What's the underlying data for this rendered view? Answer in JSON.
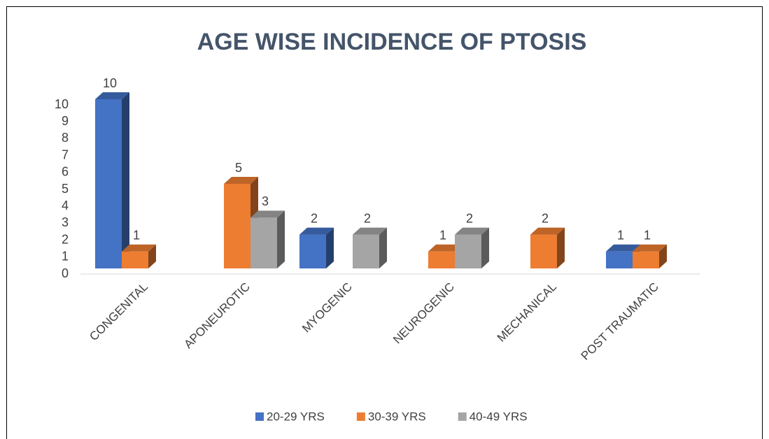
{
  "chart_data": {
    "type": "bar3d",
    "title": "AGE WISE INCIDENCE OF PTOSIS",
    "categories": [
      "CONGENITAL",
      "APONEUROTIC",
      "MYOGENIC",
      "NEUROGENIC",
      "MECHANICAL",
      "POST TRAUMATIC"
    ],
    "series": [
      {
        "name": "20-29 YRS",
        "color": "#4472c4",
        "values": [
          10,
          null,
          2,
          null,
          null,
          1
        ]
      },
      {
        "name": "30-39 YRS",
        "color": "#ed7d31",
        "values": [
          1,
          5,
          null,
          1,
          2,
          1
        ]
      },
      {
        "name": "40-49 YRS",
        "color": "#a5a5a5",
        "values": [
          null,
          3,
          2,
          2,
          null,
          null
        ]
      }
    ],
    "ylim": [
      0,
      10
    ],
    "yticks": [
      0,
      1,
      2,
      3,
      4,
      5,
      6,
      7,
      8,
      9,
      10
    ],
    "grid": false,
    "legend": "bottom"
  }
}
